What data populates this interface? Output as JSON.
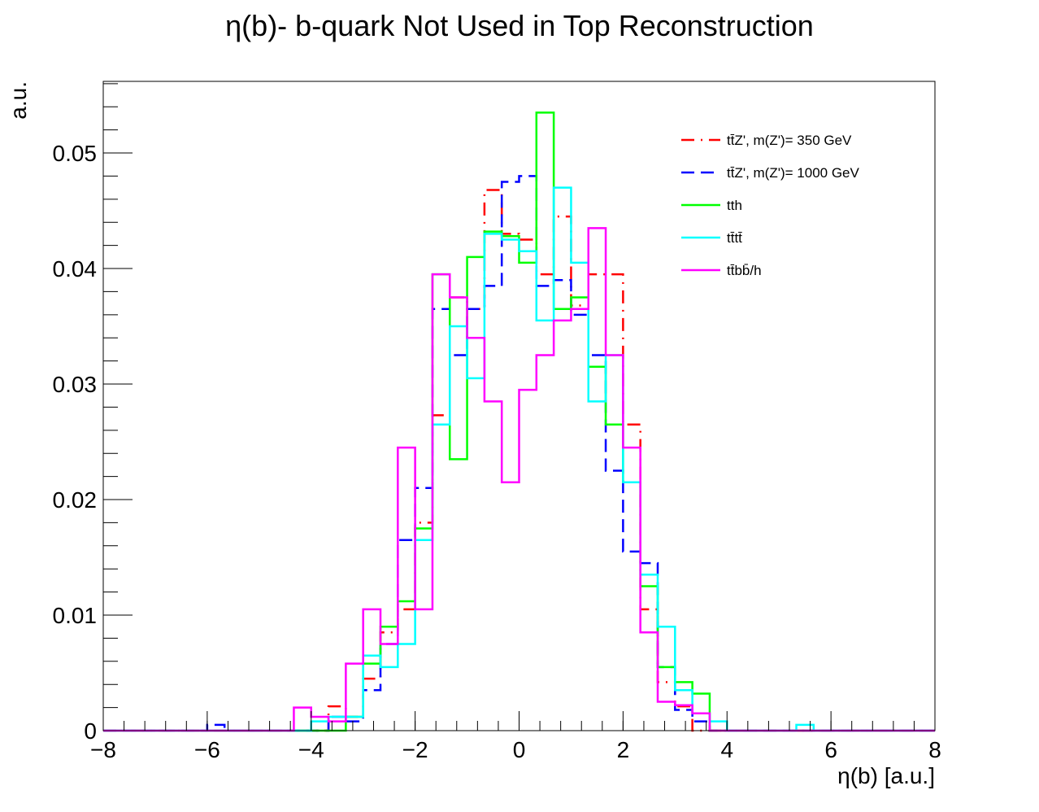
{
  "chart_data": {
    "type": "histogram-step",
    "title": "η(b)- b-quark Not Used in Top Reconstruction",
    "xlabel": "η(b) [a.u.]",
    "ylabel": "a.u.",
    "xlim": [
      -8,
      8
    ],
    "ylim": [
      0,
      0.0562
    ],
    "bin_width": 0.3333,
    "x_ticks": [
      -8,
      -6,
      -4,
      -2,
      0,
      2,
      4,
      6,
      8
    ],
    "x_tick_labels": [
      "−8",
      "−6",
      "−4",
      "−2",
      "0",
      "2",
      "4",
      "6",
      "8"
    ],
    "y_ticks": [
      0,
      0.01,
      0.02,
      0.03,
      0.04,
      0.05
    ],
    "y_tick_labels": [
      "0",
      "0.01",
      "0.02",
      "0.03",
      "0.04",
      "0.05"
    ],
    "legend_position": "top-right",
    "series": [
      {
        "name": "tt̄Z', m(Z')= 350 GeV",
        "color": "#ff0000",
        "dash": "long-dash-dot",
        "bins": [
          [
            -3.667,
            0.0021
          ],
          [
            -3.333,
            0.0012
          ],
          [
            -3.0,
            0.0045
          ],
          [
            -2.667,
            0.0085
          ],
          [
            -2.333,
            0.0105
          ],
          [
            -2.0,
            0.018
          ],
          [
            -1.667,
            0.0273
          ],
          [
            -1.333,
            0.0375
          ],
          [
            -1.0,
            0.0365
          ],
          [
            -0.667,
            0.0468
          ],
          [
            -0.333,
            0.043
          ],
          [
            0.0,
            0.0425
          ],
          [
            0.333,
            0.0395
          ],
          [
            0.667,
            0.0445
          ],
          [
            1.0,
            0.0368
          ],
          [
            1.333,
            0.0395
          ],
          [
            1.667,
            0.0395
          ],
          [
            2.0,
            0.0265
          ],
          [
            2.333,
            0.0105
          ],
          [
            2.667,
            0.0042
          ],
          [
            3.0,
            0.0021
          ]
        ]
      },
      {
        "name": "tt̄Z', m(Z')= 1000 GeV",
        "color": "#0000ff",
        "dash": "long-dash",
        "bins": [
          [
            -6.0,
            0.0005
          ],
          [
            -3.667,
            0.0012
          ],
          [
            -3.333,
            0.0008
          ],
          [
            -3.0,
            0.0035
          ],
          [
            -2.667,
            0.0075
          ],
          [
            -2.333,
            0.0165
          ],
          [
            -2.0,
            0.021
          ],
          [
            -1.667,
            0.0365
          ],
          [
            -1.333,
            0.0325
          ],
          [
            -1.0,
            0.0365
          ],
          [
            -0.667,
            0.0385
          ],
          [
            -0.333,
            0.0475
          ],
          [
            0.0,
            0.048
          ],
          [
            0.333,
            0.0385
          ],
          [
            0.667,
            0.039
          ],
          [
            1.0,
            0.036
          ],
          [
            1.333,
            0.0325
          ],
          [
            1.667,
            0.0225
          ],
          [
            2.0,
            0.0155
          ],
          [
            2.333,
            0.0145
          ],
          [
            2.667,
            0.0055
          ],
          [
            3.0,
            0.0018
          ],
          [
            3.333,
            0.0008
          ]
        ]
      },
      {
        "name": "tth",
        "color": "#00ff00",
        "dash": "solid",
        "bins": [
          [
            -3.333,
            0.0012
          ],
          [
            -3.0,
            0.0058
          ],
          [
            -2.667,
            0.009
          ],
          [
            -2.333,
            0.0112
          ],
          [
            -2.0,
            0.0175
          ],
          [
            -1.667,
            0.0395
          ],
          [
            -1.333,
            0.0235
          ],
          [
            -1.0,
            0.041
          ],
          [
            -0.667,
            0.0432
          ],
          [
            -0.333,
            0.0428
          ],
          [
            0.0,
            0.0405
          ],
          [
            0.333,
            0.0535
          ],
          [
            0.667,
            0.0365
          ],
          [
            1.0,
            0.0375
          ],
          [
            1.333,
            0.0315
          ],
          [
            1.667,
            0.0265
          ],
          [
            2.0,
            0.0215
          ],
          [
            2.333,
            0.0125
          ],
          [
            2.667,
            0.0055
          ],
          [
            3.0,
            0.0042
          ],
          [
            3.333,
            0.0032
          ]
        ]
      },
      {
        "name": "tt̄tt̄",
        "color": "#00ffff",
        "dash": "solid",
        "bins": [
          [
            -4.0,
            0.0008
          ],
          [
            -3.667,
            0.0012
          ],
          [
            -3.333,
            0.0012
          ],
          [
            -3.0,
            0.0065
          ],
          [
            -2.667,
            0.0055
          ],
          [
            -2.333,
            0.0075
          ],
          [
            -2.0,
            0.0165
          ],
          [
            -1.667,
            0.0265
          ],
          [
            -1.333,
            0.035
          ],
          [
            -1.0,
            0.0305
          ],
          [
            -0.667,
            0.043
          ],
          [
            -0.333,
            0.0425
          ],
          [
            0.0,
            0.0415
          ],
          [
            0.333,
            0.0355
          ],
          [
            0.667,
            0.047
          ],
          [
            1.0,
            0.0405
          ],
          [
            1.333,
            0.0285
          ],
          [
            1.667,
            0.0325
          ],
          [
            2.0,
            0.0215
          ],
          [
            2.333,
            0.0135
          ],
          [
            2.667,
            0.009
          ],
          [
            3.0,
            0.0035
          ],
          [
            3.333,
            0.0015
          ],
          [
            3.667,
            0.0008
          ],
          [
            5.333,
            0.0005
          ]
        ]
      },
      {
        "name": "tt̄bb̄/h",
        "color": "#ff00ff",
        "dash": "solid",
        "bins": [
          [
            -4.333,
            0.002
          ],
          [
            -4.0,
            0.0012
          ],
          [
            -3.667,
            0.0008
          ],
          [
            -3.333,
            0.0058
          ],
          [
            -3.0,
            0.0105
          ],
          [
            -2.667,
            0.0075
          ],
          [
            -2.333,
            0.0245
          ],
          [
            -2.0,
            0.0105
          ],
          [
            -1.667,
            0.0395
          ],
          [
            -1.333,
            0.0375
          ],
          [
            -1.0,
            0.034
          ],
          [
            -0.667,
            0.0285
          ],
          [
            -0.333,
            0.0215
          ],
          [
            0.0,
            0.0295
          ],
          [
            0.333,
            0.0325
          ],
          [
            0.667,
            0.0355
          ],
          [
            1.0,
            0.0365
          ],
          [
            1.333,
            0.0435
          ],
          [
            1.667,
            0.0325
          ],
          [
            2.0,
            0.0245
          ],
          [
            2.333,
            0.0085
          ],
          [
            2.667,
            0.0025
          ],
          [
            3.0,
            0.0022
          ],
          [
            3.333,
            0.0015
          ]
        ]
      }
    ]
  }
}
